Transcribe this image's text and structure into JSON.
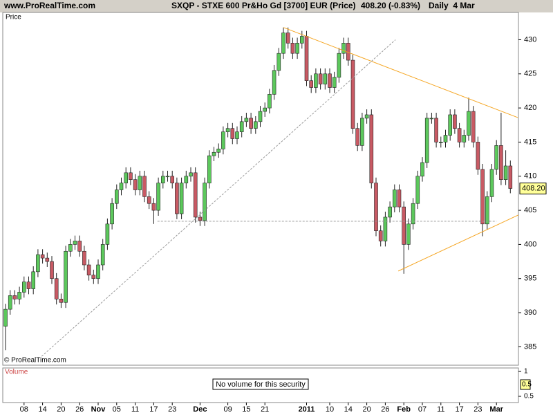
{
  "header": {
    "site": "www.ProRealTime.com",
    "title": "SXQP - STXE 600 Pr&Ho Gd [3700] EUR (Price)",
    "quote": "408.20 (-0.83%)",
    "period": "Daily  4 Mar"
  },
  "chart_data": [
    {
      "type": "candlestick",
      "title": "Price",
      "credit": "© ProRealTime.com",
      "categories": [
        null,
        null,
        null,
        null,
        "08",
        null,
        null,
        null,
        "14",
        null,
        null,
        null,
        "20",
        null,
        null,
        null,
        "26",
        null,
        null,
        null,
        "Nov",
        null,
        null,
        null,
        "05",
        null,
        null,
        null,
        "11",
        null,
        null,
        null,
        "17",
        null,
        null,
        null,
        "23",
        null,
        null,
        null,
        null,
        null,
        "Dec",
        null,
        null,
        null,
        null,
        null,
        "09",
        null,
        null,
        null,
        "15",
        null,
        null,
        null,
        "21",
        null,
        null,
        null,
        null,
        null,
        null,
        null,
        null,
        "2011",
        null,
        null,
        null,
        null,
        "10",
        null,
        null,
        null,
        "14",
        null,
        null,
        null,
        "20",
        null,
        null,
        null,
        "26",
        null,
        null,
        null,
        "Feb",
        null,
        null,
        null,
        "07",
        null,
        null,
        null,
        "11",
        null,
        null,
        null,
        "17",
        null,
        null,
        null,
        "23",
        null,
        null,
        null,
        "Mar",
        null,
        null,
        null
      ],
      "open": [
        388,
        390.5,
        392.5,
        392,
        393,
        394.5,
        393.5,
        396,
        398.5,
        398,
        397.5,
        395,
        392,
        391.5,
        399,
        400,
        400.5,
        399,
        397,
        395.5,
        395,
        397,
        400,
        403,
        406,
        408,
        409,
        410.5,
        409.5,
        408,
        410,
        407,
        406,
        405,
        409,
        410,
        410,
        409,
        404.5,
        409,
        410,
        410.5,
        404,
        403.5,
        409,
        413,
        413.5,
        414,
        416.5,
        417,
        415.5,
        416.5,
        418,
        418.5,
        417,
        418,
        419.5,
        420,
        422,
        425.5,
        428,
        431,
        429.5,
        428,
        429.5,
        430.5,
        424,
        423,
        425,
        423.5,
        425,
        423,
        424.5,
        428,
        429.5,
        427,
        417,
        414.5,
        418.5,
        419,
        409,
        402,
        400.5,
        404,
        405.5,
        408,
        405.5,
        400,
        403,
        406,
        410,
        412,
        418.5,
        418.5,
        415,
        415,
        416,
        419,
        417,
        415,
        416,
        419.5,
        415,
        411,
        403,
        407,
        411,
        414.5,
        409.5,
        411.5
      ],
      "high": [
        391.3,
        393.3,
        393.3,
        393.8,
        395.3,
        395.3,
        396.8,
        399.3,
        399.3,
        398.8,
        398.3,
        395.8,
        392.8,
        399.8,
        400.8,
        401.3,
        401.3,
        399.8,
        397.8,
        396.3,
        397.8,
        400.8,
        403.8,
        406.8,
        408.8,
        409.8,
        411.3,
        411.3,
        410.3,
        410.8,
        410.8,
        407.8,
        406.8,
        409.8,
        410.8,
        410.8,
        410.8,
        409.8,
        409.8,
        410.8,
        411.3,
        411.3,
        404.8,
        409.8,
        413.8,
        414.3,
        414.8,
        417.3,
        417.8,
        417.8,
        417.3,
        418.8,
        419.3,
        419.3,
        418.8,
        420.3,
        420.8,
        422.8,
        426.3,
        428.8,
        431.8,
        431.8,
        430.3,
        430.3,
        431.3,
        431.3,
        424.8,
        425.8,
        425.8,
        425.8,
        425.8,
        425.3,
        428.8,
        430.3,
        430.3,
        427.8,
        417.8,
        419.3,
        419.8,
        419.8,
        409.8,
        402.8,
        404.8,
        406.3,
        408.8,
        408.8,
        406.3,
        403.8,
        406.8,
        410.8,
        412.8,
        419.3,
        419.3,
        419.3,
        415.8,
        416.8,
        419.8,
        419.8,
        417.8,
        416.8,
        421.5,
        420.3,
        415.8,
        411.8,
        407.8,
        411.8,
        415.3,
        419.3,
        413.8,
        412.3
      ],
      "low": [
        384.5,
        389.7,
        391.2,
        391.2,
        392.2,
        392.7,
        392.7,
        395.2,
        397.2,
        396.7,
        394.2,
        391.2,
        390.7,
        390.7,
        398.2,
        399.2,
        398.2,
        396.2,
        394.7,
        394.2,
        394.2,
        396.2,
        399.2,
        402.2,
        405.2,
        407.2,
        408.2,
        408.7,
        407.2,
        407.2,
        406.2,
        405.2,
        403,
        404.2,
        408.2,
        409.2,
        408.2,
        403.7,
        403.7,
        408.2,
        409.2,
        403.2,
        402.7,
        402.7,
        408.2,
        412.2,
        412.7,
        413.2,
        415.7,
        414.7,
        414.7,
        415.7,
        417.2,
        416.2,
        416.2,
        417.2,
        418.7,
        419.2,
        421.2,
        424.7,
        427.2,
        428.7,
        427.2,
        427.2,
        428.7,
        423.2,
        422.2,
        422.2,
        422.7,
        422.7,
        422.2,
        422.2,
        423.7,
        427.2,
        426.2,
        416.2,
        413.7,
        413.7,
        417.7,
        408.2,
        401.2,
        399.7,
        399.7,
        403.2,
        404.7,
        404.7,
        395.7,
        399.2,
        402.2,
        405.2,
        409.2,
        411.2,
        417.7,
        414.2,
        414.2,
        414.2,
        415.2,
        416.2,
        414.2,
        414.2,
        415.2,
        414.2,
        410.2,
        401.2,
        402.2,
        406.2,
        410.2,
        408.7,
        408.7,
        407.5
      ],
      "close": [
        390.5,
        392.5,
        392,
        393,
        394.5,
        393.5,
        396,
        398.5,
        398,
        397.5,
        395,
        392,
        391.5,
        399,
        400,
        400.5,
        399,
        397,
        395.5,
        395,
        397,
        400,
        403,
        406,
        408,
        409,
        410.5,
        409.5,
        408,
        410,
        407,
        406,
        405,
        409,
        410,
        410,
        409,
        404.5,
        409,
        410,
        410.5,
        404,
        403.5,
        409,
        413,
        413.5,
        414,
        416.5,
        417,
        415.5,
        416.5,
        418,
        418.5,
        417,
        418,
        419.5,
        420,
        422,
        425.5,
        428,
        431,
        429.5,
        428,
        429.5,
        430.5,
        424,
        423,
        425,
        423.5,
        425,
        423,
        424.5,
        428,
        429.5,
        427,
        417,
        414.5,
        418.5,
        419,
        409,
        402,
        400.5,
        404,
        405.5,
        408,
        405.5,
        400,
        403,
        406,
        410,
        412,
        418.5,
        418.5,
        415,
        415,
        416,
        419,
        417,
        415,
        416,
        419.5,
        415,
        411,
        403,
        407,
        411,
        414.5,
        409.5,
        411.5,
        408.2
      ],
      "up_color": "#5cc85c",
      "down_color": "#c85a64",
      "last_value": {
        "value": 408.2,
        "label": "408.20"
      },
      "ylim": [
        382.3,
        434
      ],
      "yticks": [
        385,
        390,
        395,
        400,
        405,
        410,
        415,
        420,
        425,
        430
      ],
      "lines": [
        {
          "x": [
            60,
            110.6
          ],
          "y": [
            431.8,
            418.6
          ],
          "color": "#f5a623"
        },
        {
          "x": [
            84.8,
            110.7
          ],
          "y": [
            396.1,
            404.3
          ],
          "color": "#f5a623"
        },
        {
          "x": [
            7.8,
            84.2
          ],
          "y": [
            383.6,
            430
          ],
          "color": "#999999",
          "dashed": true
        },
        {
          "x": [
            32.8,
            106
          ],
          "y": [
            403.4,
            403.4
          ],
          "color": "#999999",
          "dashed": true
        }
      ]
    },
    {
      "type": "volume",
      "title": "Volume",
      "note": "No volume for this security",
      "ylim": [
        0.375,
        1.07
      ],
      "yticks": [
        1,
        0.5
      ],
      "current_value": 0.5
    }
  ]
}
